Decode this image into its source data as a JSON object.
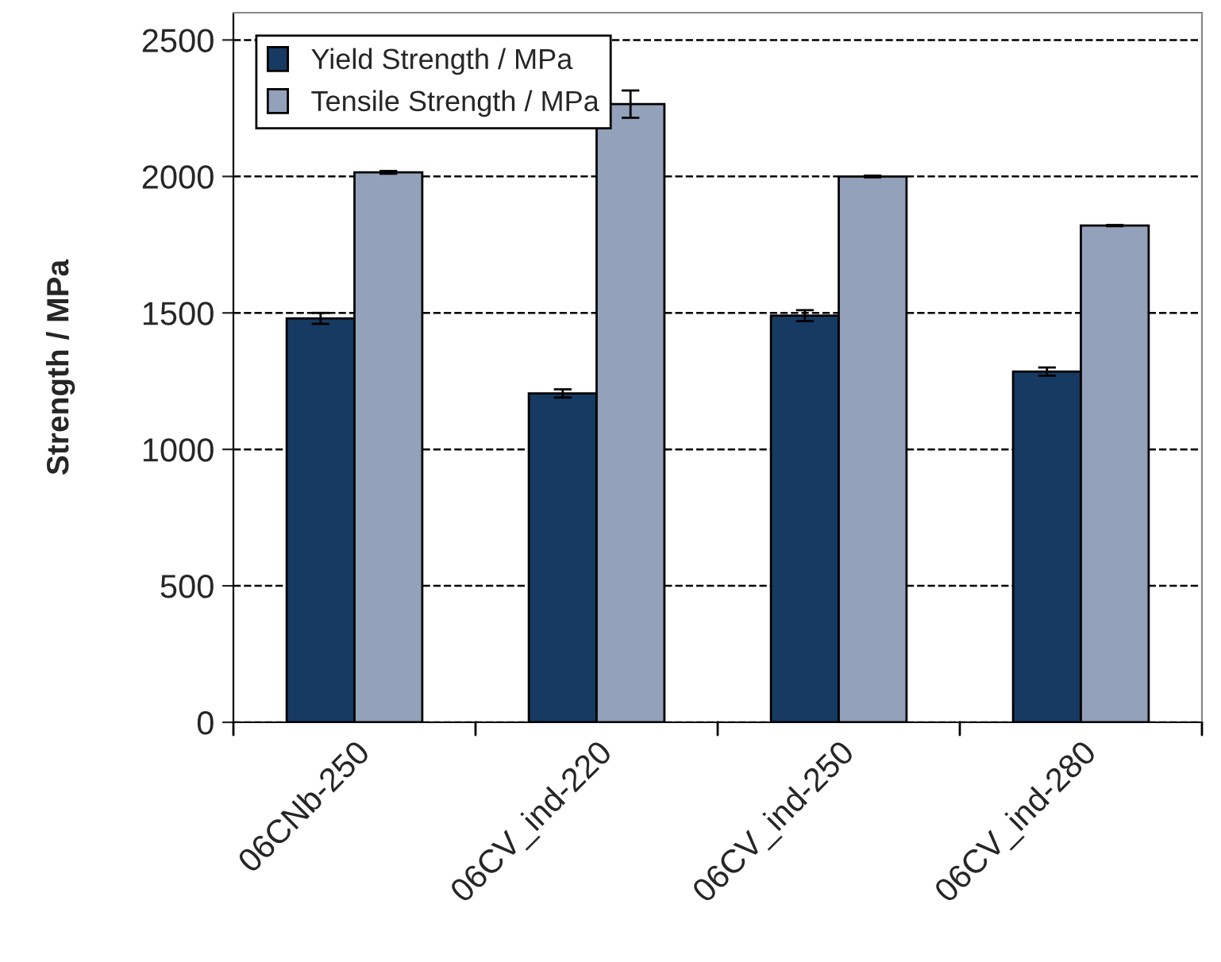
{
  "chart_data": {
    "type": "bar",
    "ylabel": "Strength / MPa",
    "categories": [
      "06CNb-250",
      "06CV_ind-220",
      "06CV_ind-250",
      "06CV_ind-280"
    ],
    "series": [
      {
        "name": "Yield Strength / MPa",
        "color": "#163a61",
        "values": [
          1480,
          1205,
          1490,
          1285
        ],
        "errors": [
          20,
          15,
          20,
          15
        ]
      },
      {
        "name": "Tensile Strength / MPa",
        "color": "#93a1ba",
        "values": [
          2015,
          2265,
          2000,
          1820
        ],
        "errors": [
          5,
          50,
          3,
          2
        ]
      }
    ],
    "ylim": [
      0,
      2600
    ],
    "yticks": [
      0,
      500,
      1000,
      1500,
      2000,
      2500
    ],
    "grid": "y",
    "legend": "top left"
  }
}
